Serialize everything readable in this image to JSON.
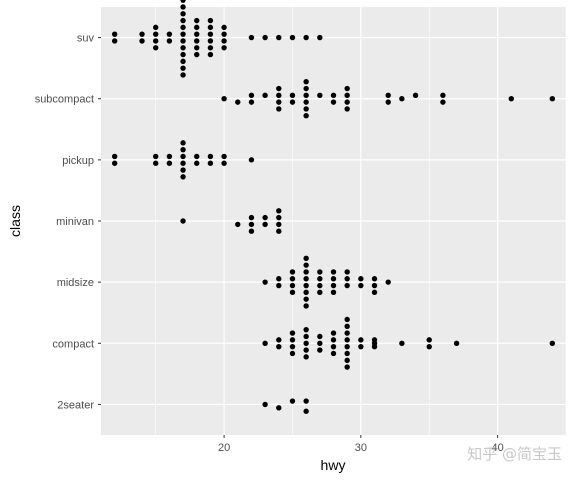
{
  "chart_data": {
    "type": "scatter",
    "style": "ggplot2 beeswarm dot plot",
    "xlabel": "hwy",
    "ylabel": "class",
    "xlim": [
      11,
      45
    ],
    "x_ticks": [
      20,
      30,
      40
    ],
    "categories": [
      "2seater",
      "compact",
      "midsize",
      "minivan",
      "pickup",
      "subcompact",
      "suv"
    ],
    "colors": {
      "panel": "#ebebeb",
      "grid": "#ffffff",
      "point": "#000000",
      "tick_text": "#4d4d4d"
    },
    "series": [
      {
        "category": "2seater",
        "points": [
          {
            "x": 23,
            "o": 0
          },
          {
            "x": 24,
            "o": -1
          },
          {
            "x": 25,
            "o": 1
          },
          {
            "x": 26,
            "o": 1
          },
          {
            "x": 26,
            "o": -2
          }
        ]
      },
      {
        "category": "compact",
        "points": [
          {
            "x": 23,
            "o": 0
          },
          {
            "x": 24,
            "o": -1
          },
          {
            "x": 24,
            "o": 1
          },
          {
            "x": 25,
            "o": -1
          },
          {
            "x": 25,
            "o": 1
          },
          {
            "x": 25,
            "o": -3
          },
          {
            "x": 25,
            "o": 3
          },
          {
            "x": 26,
            "o": -4
          },
          {
            "x": 26,
            "o": -2
          },
          {
            "x": 26,
            "o": 0
          },
          {
            "x": 26,
            "o": 2
          },
          {
            "x": 26,
            "o": 4
          },
          {
            "x": 27,
            "o": -2
          },
          {
            "x": 27,
            "o": 0
          },
          {
            "x": 27,
            "o": 2
          },
          {
            "x": 28,
            "o": -1
          },
          {
            "x": 28,
            "o": 1
          },
          {
            "x": 28,
            "o": -3
          },
          {
            "x": 28,
            "o": 3
          },
          {
            "x": 29,
            "o": -7
          },
          {
            "x": 29,
            "o": -5
          },
          {
            "x": 29,
            "o": -3
          },
          {
            "x": 29,
            "o": -1
          },
          {
            "x": 29,
            "o": 1
          },
          {
            "x": 29,
            "o": 3
          },
          {
            "x": 29,
            "o": 5
          },
          {
            "x": 29,
            "o": 7
          },
          {
            "x": 30,
            "o": -1
          },
          {
            "x": 30,
            "o": 1
          },
          {
            "x": 31,
            "o": -1
          },
          {
            "x": 31,
            "o": 0
          },
          {
            "x": 31,
            "o": 1
          },
          {
            "x": 33,
            "o": 0
          },
          {
            "x": 35,
            "o": -1
          },
          {
            "x": 35,
            "o": 1
          },
          {
            "x": 37,
            "o": 0
          },
          {
            "x": 44,
            "o": 0
          }
        ]
      },
      {
        "category": "midsize",
        "points": [
          {
            "x": 23,
            "o": 0
          },
          {
            "x": 24,
            "o": -1
          },
          {
            "x": 24,
            "o": 1
          },
          {
            "x": 25,
            "o": -3
          },
          {
            "x": 25,
            "o": -1
          },
          {
            "x": 25,
            "o": 1
          },
          {
            "x": 25,
            "o": 3
          },
          {
            "x": 26,
            "o": -7
          },
          {
            "x": 26,
            "o": -5
          },
          {
            "x": 26,
            "o": -3
          },
          {
            "x": 26,
            "o": -1
          },
          {
            "x": 26,
            "o": 1
          },
          {
            "x": 26,
            "o": 3
          },
          {
            "x": 26,
            "o": 5
          },
          {
            "x": 26,
            "o": 7
          },
          {
            "x": 27,
            "o": -3
          },
          {
            "x": 27,
            "o": -1
          },
          {
            "x": 27,
            "o": 1
          },
          {
            "x": 27,
            "o": 3
          },
          {
            "x": 28,
            "o": -1
          },
          {
            "x": 28,
            "o": 1
          },
          {
            "x": 28,
            "o": -3
          },
          {
            "x": 28,
            "o": 3
          },
          {
            "x": 29,
            "o": -1
          },
          {
            "x": 29,
            "o": 1
          },
          {
            "x": 29,
            "o": 3
          },
          {
            "x": 30,
            "o": -1
          },
          {
            "x": 30,
            "o": 1
          },
          {
            "x": 31,
            "o": -1
          },
          {
            "x": 31,
            "o": 1
          },
          {
            "x": 31,
            "o": -3
          },
          {
            "x": 32,
            "o": 0
          }
        ]
      },
      {
        "category": "minivan",
        "points": [
          {
            "x": 17,
            "o": 0
          },
          {
            "x": 21,
            "o": -1
          },
          {
            "x": 22,
            "o": -1
          },
          {
            "x": 22,
            "o": 1
          },
          {
            "x": 22,
            "o": -3
          },
          {
            "x": 23,
            "o": 1
          },
          {
            "x": 23,
            "o": -1
          },
          {
            "x": 24,
            "o": -3
          },
          {
            "x": 24,
            "o": -1
          },
          {
            "x": 24,
            "o": 1
          },
          {
            "x": 24,
            "o": 3
          }
        ]
      },
      {
        "category": "pickup",
        "points": [
          {
            "x": 12,
            "o": -1
          },
          {
            "x": 12,
            "o": 1
          },
          {
            "x": 15,
            "o": -1
          },
          {
            "x": 15,
            "o": 1
          },
          {
            "x": 16,
            "o": -1
          },
          {
            "x": 16,
            "o": 1
          },
          {
            "x": 17,
            "o": -5
          },
          {
            "x": 17,
            "o": -3
          },
          {
            "x": 17,
            "o": -1
          },
          {
            "x": 17,
            "o": 1
          },
          {
            "x": 17,
            "o": 3
          },
          {
            "x": 17,
            "o": 5
          },
          {
            "x": 18,
            "o": -1
          },
          {
            "x": 18,
            "o": 1
          },
          {
            "x": 19,
            "o": -1
          },
          {
            "x": 19,
            "o": 1
          },
          {
            "x": 20,
            "o": -1
          },
          {
            "x": 20,
            "o": 1
          },
          {
            "x": 22,
            "o": 0
          }
        ]
      },
      {
        "category": "subcompact",
        "points": [
          {
            "x": 20,
            "o": 0
          },
          {
            "x": 21,
            "o": -1
          },
          {
            "x": 22,
            "o": -1
          },
          {
            "x": 22,
            "o": 1
          },
          {
            "x": 23,
            "o": 1
          },
          {
            "x": 24,
            "o": -3
          },
          {
            "x": 24,
            "o": -1
          },
          {
            "x": 24,
            "o": 1
          },
          {
            "x": 24,
            "o": 3
          },
          {
            "x": 25,
            "o": -1
          },
          {
            "x": 25,
            "o": 1
          },
          {
            "x": 26,
            "o": -5
          },
          {
            "x": 26,
            "o": -3
          },
          {
            "x": 26,
            "o": -1
          },
          {
            "x": 26,
            "o": 1
          },
          {
            "x": 26,
            "o": 3
          },
          {
            "x": 26,
            "o": 5
          },
          {
            "x": 27,
            "o": 1
          },
          {
            "x": 28,
            "o": -1
          },
          {
            "x": 28,
            "o": 1
          },
          {
            "x": 29,
            "o": -3
          },
          {
            "x": 29,
            "o": -1
          },
          {
            "x": 29,
            "o": 1
          },
          {
            "x": 29,
            "o": 3
          },
          {
            "x": 32,
            "o": -1
          },
          {
            "x": 32,
            "o": 1
          },
          {
            "x": 33,
            "o": 0
          },
          {
            "x": 34,
            "o": 1
          },
          {
            "x": 36,
            "o": -1
          },
          {
            "x": 36,
            "o": 1
          },
          {
            "x": 41,
            "o": 0
          },
          {
            "x": 44,
            "o": 0
          }
        ]
      },
      {
        "category": "suv",
        "points": [
          {
            "x": 12,
            "o": -1
          },
          {
            "x": 12,
            "o": 1
          },
          {
            "x": 14,
            "o": -1
          },
          {
            "x": 14,
            "o": 1
          },
          {
            "x": 15,
            "o": -3
          },
          {
            "x": 15,
            "o": -1
          },
          {
            "x": 15,
            "o": 1
          },
          {
            "x": 15,
            "o": 3
          },
          {
            "x": 16,
            "o": -1
          },
          {
            "x": 16,
            "o": 1
          },
          {
            "x": 17,
            "o": -11
          },
          {
            "x": 17,
            "o": -9
          },
          {
            "x": 17,
            "o": -7
          },
          {
            "x": 17,
            "o": -5
          },
          {
            "x": 17,
            "o": -3
          },
          {
            "x": 17,
            "o": -1
          },
          {
            "x": 17,
            "o": 1
          },
          {
            "x": 17,
            "o": 3
          },
          {
            "x": 17,
            "o": 5
          },
          {
            "x": 17,
            "o": 7
          },
          {
            "x": 17,
            "o": 9
          },
          {
            "x": 17,
            "o": 11
          },
          {
            "x": 18,
            "o": -5
          },
          {
            "x": 18,
            "o": -3
          },
          {
            "x": 18,
            "o": -1
          },
          {
            "x": 18,
            "o": 1
          },
          {
            "x": 18,
            "o": 3
          },
          {
            "x": 18,
            "o": 5
          },
          {
            "x": 19,
            "o": -5
          },
          {
            "x": 19,
            "o": -3
          },
          {
            "x": 19,
            "o": -1
          },
          {
            "x": 19,
            "o": 1
          },
          {
            "x": 19,
            "o": 3
          },
          {
            "x": 19,
            "o": 5
          },
          {
            "x": 20,
            "o": -3
          },
          {
            "x": 20,
            "o": -1
          },
          {
            "x": 20,
            "o": 1
          },
          {
            "x": 20,
            "o": 3
          },
          {
            "x": 22,
            "o": 0
          },
          {
            "x": 23,
            "o": 0
          },
          {
            "x": 24,
            "o": 0
          },
          {
            "x": 25,
            "o": 0
          },
          {
            "x": 26,
            "o": 0
          },
          {
            "x": 27,
            "o": 0
          }
        ]
      }
    ]
  },
  "watermark": "知乎 @简宝玉"
}
